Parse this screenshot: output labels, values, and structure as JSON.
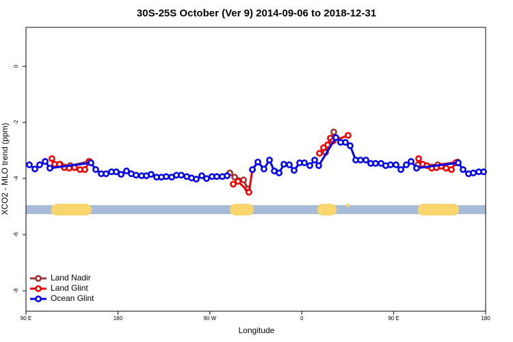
{
  "chart_data": {
    "type": "line",
    "title": "30S-25S October (Ver 9)   2014-09-06 to 2018-12-31",
    "x_label": "Longitude",
    "y_label": "XCO2 - MLO trend (ppm)",
    "xlim": [
      90,
      540
    ],
    "xticks": [
      {
        "value": 90,
        "label": "90 E"
      },
      180,
      {
        "value": 270,
        "label": "90 W"
      },
      {
        "value": 360,
        "label": "0"
      },
      {
        "value": 450,
        "label": "90 E"
      },
      180
    ],
    "ylim": [
      -8.73,
      1.39
    ],
    "yticks": [
      0,
      -2,
      -4,
      -6,
      -8
    ],
    "legend": "bottom-left",
    "series": [
      {
        "name": "Land Nadir",
        "color": "#a03030",
        "x": [
          123.5,
          133.5,
          151.6,
          null,
          289.6,
          294.3,
          303.0,
          307.0,
          null,
          383.3,
          391.3,
          null,
          473.7,
          493.1,
          512.6
        ],
        "values": [
          -3.49,
          -3.54,
          -3.39,
          null,
          -3.8,
          -3.95,
          -4.05,
          -4.37,
          null,
          -3.07,
          -2.34,
          null,
          -3.51,
          -3.51,
          -3.41
        ]
      },
      {
        "name": "Land Glint",
        "color": "#ee0000",
        "x": [
          115.4,
          118.1,
          122.8,
          127.5,
          132.2,
          137.5,
          142.9,
          147.6,
          152.3,
          null,
          292.9,
          297.6,
          308.3,
          311.7,
          null,
          377.3,
          381.3,
          385.3,
          388.0,
          390.7,
          405.4,
          null,
          474.4,
          478.4,
          482.5,
          487.2,
          491.9,
          496.6,
          501.3,
          506.5,
          510.5
        ],
        "values": [
          -3.29,
          -3.49,
          -3.49,
          -3.61,
          -3.63,
          -3.61,
          -3.68,
          -3.68,
          -3.39,
          null,
          -4.2,
          -4.1,
          -4.49,
          -3.68,
          null,
          -3.1,
          -2.9,
          -2.8,
          -2.56,
          -2.66,
          -2.46,
          null,
          -3.29,
          -3.49,
          -3.54,
          -3.63,
          -3.61,
          -3.56,
          -3.63,
          -3.68,
          -3.44
        ]
      },
      {
        "name": "Ocean Glint",
        "color": "#0000ee",
        "x": [
          93.3,
          98.7,
          103.4,
          108.8,
          113.4,
          153.6,
          158.3,
          163.7,
          168.4,
          173.7,
          178.4,
          183.1,
          188.4,
          193.1,
          197.8,
          203.2,
          207.9,
          212.5,
          217.9,
          222.6,
          227.3,
          232.6,
          237.3,
          242.0,
          247.4,
          252.1,
          256.7,
          262.1,
          266.8,
          272.1,
          276.8,
          282.2,
          286.9,
          null,
          311.7,
          317.0,
          323.0,
          328.4,
          333.1,
          337.8,
          342.5,
          347.8,
          352.5,
          357.9,
          362.6,
          367.9,
          372.6,
          376.6,
          393.4,
          398.0,
          402.7,
          407.4,
          412.8,
          417.5,
          422.8,
          427.5,
          432.2,
          437.6,
          442.2,
          446.9,
          452.3,
          457.0,
          462.3,
          467.0,
          472.4,
          513.2,
          517.9,
          523.3,
          528.0,
          533.3,
          538.0
        ],
        "values": [
          -3.51,
          -3.66,
          -3.51,
          -3.39,
          -3.63,
          -3.44,
          -3.68,
          -3.83,
          -3.83,
          -3.76,
          -3.76,
          -3.85,
          -3.73,
          -3.83,
          -3.88,
          -3.9,
          -3.9,
          -3.85,
          -3.95,
          -3.95,
          -3.93,
          -3.95,
          -3.88,
          -3.88,
          -3.93,
          -3.98,
          -4.02,
          -3.9,
          -4.0,
          -3.93,
          -3.93,
          -3.93,
          -3.9,
          null,
          -3.68,
          -3.41,
          -3.66,
          -3.34,
          -3.73,
          -3.8,
          -3.49,
          -3.51,
          -3.71,
          -3.44,
          -3.44,
          -3.54,
          -3.34,
          -3.54,
          -2.54,
          -2.71,
          -2.71,
          -2.83,
          -3.34,
          -3.34,
          -3.34,
          -3.46,
          -3.46,
          -3.46,
          -3.54,
          -3.51,
          -3.51,
          -3.68,
          -3.51,
          -3.39,
          -3.63,
          -3.44,
          -3.68,
          -3.83,
          -3.8,
          -3.76,
          -3.76
        ]
      }
    ]
  }
}
